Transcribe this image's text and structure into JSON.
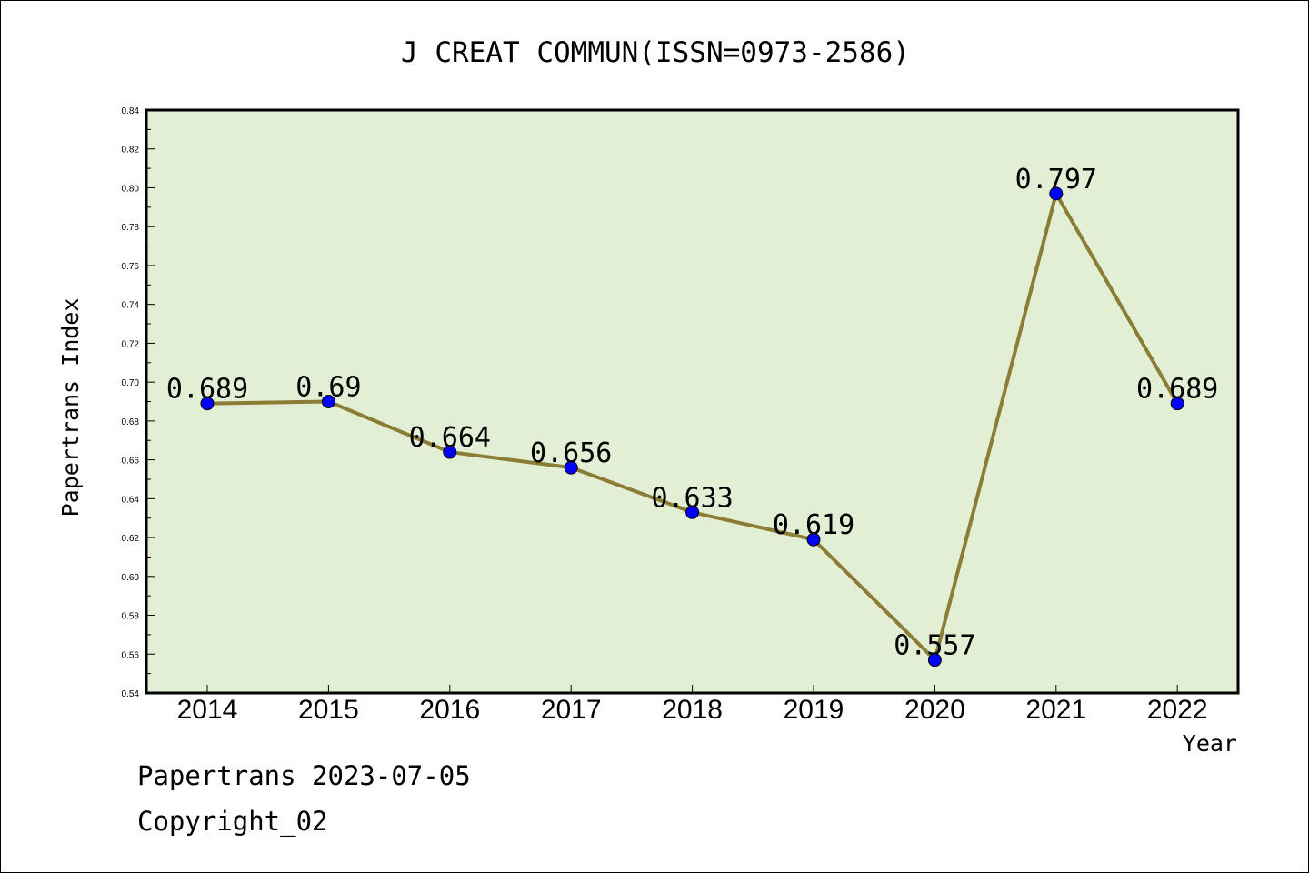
{
  "chart_data": {
    "type": "line",
    "title": "J CREAT COMMUN(ISSN=0973-2586)",
    "xlabel": "Year",
    "ylabel": "Papertrans Index",
    "x": [
      "2014",
      "2015",
      "2016",
      "2017",
      "2018",
      "2019",
      "2020",
      "2021",
      "2022"
    ],
    "values": [
      0.689,
      0.69,
      0.664,
      0.656,
      0.633,
      0.619,
      0.557,
      0.797,
      0.689
    ],
    "data_labels": [
      "0.689",
      "0.69",
      "0.664",
      "0.656",
      "0.633",
      "0.619",
      "0.557",
      "0.797",
      "0.689"
    ],
    "yticks": [
      "0.54",
      "0.56",
      "0.58",
      "0.60",
      "0.62",
      "0.64",
      "0.66",
      "0.68",
      "0.70",
      "0.72",
      "0.74",
      "0.76",
      "0.78",
      "0.80",
      "0.82",
      "0.84"
    ],
    "ylim": [
      0.54,
      0.84
    ],
    "grid": false,
    "colors": {
      "line": "#8b7d35",
      "marker": "#0000ff",
      "plot_background": "#e2efd5"
    }
  },
  "footer": {
    "line1": "Papertrans 2023-07-05",
    "line2": "Copyright_02"
  }
}
